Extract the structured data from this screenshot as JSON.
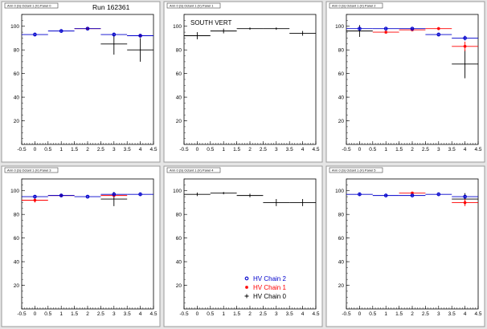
{
  "run_label": "Run 162361",
  "colors": {
    "chain0": "#000000",
    "chain1": "#ff0000",
    "chain2": "#0000cc"
  },
  "legend": [
    {
      "label": "HV Chain 2",
      "color": "#0000cc",
      "marker": "circle"
    },
    {
      "label": "HV Chain 1",
      "color": "#ff0000",
      "marker": "star"
    },
    {
      "label": "HV Chain 0",
      "color": "#000000",
      "marker": "plus"
    }
  ],
  "chart_data": [
    {
      "type": "scatter",
      "panel_title": "Arm 0 (S) Octant 1 (V) Panel 0",
      "annotation": "",
      "xlim": [
        -0.5,
        4.5
      ],
      "ylim": [
        0,
        110
      ],
      "xticks": [
        "-0.5",
        "0",
        "0.5",
        "1",
        "1.5",
        "2",
        "2.5",
        "3",
        "3.5",
        "4",
        "4.5"
      ],
      "yticks": [
        "20",
        "40",
        "60",
        "80",
        "100"
      ],
      "series": [
        {
          "chain": 2,
          "points": [
            {
              "x": 0,
              "y": 93,
              "err": 1
            },
            {
              "x": 1,
              "y": 96,
              "err": 1
            },
            {
              "x": 2,
              "y": 98,
              "err": 0.5
            },
            {
              "x": 3,
              "y": 93,
              "err": 1
            },
            {
              "x": 4,
              "y": 92,
              "err": 1
            }
          ]
        },
        {
          "chain": 1,
          "points": [
            {
              "x": 2,
              "y": 98,
              "err": 0.5
            },
            {
              "x": 4,
              "y": 92,
              "err": 1
            }
          ]
        },
        {
          "chain": 0,
          "points": [
            {
              "x": 3,
              "y": 85,
              "err": 9
            },
            {
              "x": 4,
              "y": 80,
              "err": 10
            }
          ]
        }
      ]
    },
    {
      "type": "scatter",
      "panel_title": "Arm 0 (S) Octant 1 (V) Panel 1",
      "annotation": "SOUTH VERT",
      "xlim": [
        -0.5,
        4.5
      ],
      "ylim": [
        0,
        110
      ],
      "xticks": [
        "-0.5",
        "0",
        "0.5",
        "1",
        "1.5",
        "2",
        "2.5",
        "3",
        "3.5",
        "4",
        "4.5"
      ],
      "yticks": [
        "20",
        "40",
        "60",
        "80",
        "100"
      ],
      "series": [
        {
          "chain": 0,
          "points": [
            {
              "x": 0,
              "y": 92,
              "err": 3
            },
            {
              "x": 1,
              "y": 96,
              "err": 2
            },
            {
              "x": 2,
              "y": 98,
              "err": 1
            },
            {
              "x": 3,
              "y": 98,
              "err": 1
            },
            {
              "x": 4,
              "y": 94,
              "err": 2
            }
          ]
        }
      ]
    },
    {
      "type": "scatter",
      "panel_title": "Arm 0 (S) Octant 1 (V) Panel 2",
      "annotation": "",
      "xlim": [
        -0.5,
        4.5
      ],
      "ylim": [
        0,
        110
      ],
      "xticks": [
        "-0.5",
        "0",
        "0.5",
        "1",
        "1.5",
        "2",
        "2.5",
        "3",
        "3.5",
        "4",
        "4.5"
      ],
      "yticks": [
        "20",
        "40",
        "60",
        "80",
        "100"
      ],
      "series": [
        {
          "chain": 2,
          "points": [
            {
              "x": 0,
              "y": 98,
              "err": 1
            },
            {
              "x": 1,
              "y": 98,
              "err": 1
            },
            {
              "x": 2,
              "y": 98,
              "err": 1
            },
            {
              "x": 3,
              "y": 93,
              "err": 1
            },
            {
              "x": 4,
              "y": 90,
              "err": 2
            }
          ]
        },
        {
          "chain": 1,
          "points": [
            {
              "x": 1,
              "y": 95,
              "err": 1
            },
            {
              "x": 2,
              "y": 97,
              "err": 1
            },
            {
              "x": 3,
              "y": 98,
              "err": 1
            },
            {
              "x": 4,
              "y": 83,
              "err": 4
            }
          ]
        },
        {
          "chain": 0,
          "points": [
            {
              "x": 0,
              "y": 96,
              "err": 5
            },
            {
              "x": 4,
              "y": 68,
              "err": 12
            }
          ]
        }
      ]
    },
    {
      "type": "scatter",
      "panel_title": "Arm 0 (S) Octant 1 (V) Panel 3",
      "annotation": "",
      "xlim": [
        -0.5,
        4.5
      ],
      "ylim": [
        0,
        110
      ],
      "xticks": [
        "-0.5",
        "0",
        "0.5",
        "1",
        "1.5",
        "2",
        "2.5",
        "3",
        "3.5",
        "4",
        "4.5"
      ],
      "yticks": [
        "20",
        "40",
        "60",
        "80",
        "100"
      ],
      "series": [
        {
          "chain": 2,
          "points": [
            {
              "x": 0,
              "y": 95,
              "err": 1
            },
            {
              "x": 1,
              "y": 96,
              "err": 1
            },
            {
              "x": 2,
              "y": 95,
              "err": 1
            },
            {
              "x": 3,
              "y": 97,
              "err": 1
            },
            {
              "x": 4,
              "y": 97,
              "err": 1
            }
          ]
        },
        {
          "chain": 1,
          "points": [
            {
              "x": 0,
              "y": 92,
              "err": 2
            },
            {
              "x": 1,
              "y": 96,
              "err": 1
            },
            {
              "x": 3,
              "y": 96,
              "err": 1
            }
          ]
        },
        {
          "chain": 0,
          "points": [
            {
              "x": 3,
              "y": 93,
              "err": 6
            }
          ]
        }
      ]
    },
    {
      "type": "scatter",
      "panel_title": "Arm 0 (S) Octant 1 (V) Panel 4",
      "annotation": "",
      "xlim": [
        -0.5,
        4.5
      ],
      "ylim": [
        0,
        110
      ],
      "xticks": [
        "-0.5",
        "0",
        "0.5",
        "1",
        "1.5",
        "2",
        "2.5",
        "3",
        "3.5",
        "4",
        "4.5"
      ],
      "yticks": [
        "20",
        "40",
        "60",
        "80",
        "100"
      ],
      "series": [
        {
          "chain": 0,
          "points": [
            {
              "x": 0,
              "y": 97,
              "err": 1.5
            },
            {
              "x": 1,
              "y": 98,
              "err": 1
            },
            {
              "x": 2,
              "y": 96,
              "err": 1.5
            },
            {
              "x": 3,
              "y": 90,
              "err": 3
            },
            {
              "x": 4,
              "y": 90,
              "err": 3
            }
          ]
        }
      ]
    },
    {
      "type": "scatter",
      "panel_title": "Arm 0 (S) Octant 1 (V) Panel 5",
      "annotation": "",
      "xlim": [
        -0.5,
        4.5
      ],
      "ylim": [
        0,
        110
      ],
      "xticks": [
        "-0.5",
        "0",
        "0.5",
        "1",
        "1.5",
        "2",
        "2.5",
        "3",
        "3.5",
        "4",
        "4.5"
      ],
      "yticks": [
        "20",
        "40",
        "60",
        "80",
        "100"
      ],
      "series": [
        {
          "chain": 2,
          "points": [
            {
              "x": 0,
              "y": 97,
              "err": 1
            },
            {
              "x": 1,
              "y": 96,
              "err": 1
            },
            {
              "x": 2,
              "y": 96,
              "err": 1
            },
            {
              "x": 3,
              "y": 97,
              "err": 1
            },
            {
              "x": 4,
              "y": 95,
              "err": 1
            }
          ]
        },
        {
          "chain": 1,
          "points": [
            {
              "x": 2,
              "y": 98,
              "err": 1
            },
            {
              "x": 4,
              "y": 90,
              "err": 3
            }
          ]
        },
        {
          "chain": 0,
          "points": [
            {
              "x": 4,
              "y": 93,
              "err": 5
            }
          ]
        }
      ]
    }
  ]
}
